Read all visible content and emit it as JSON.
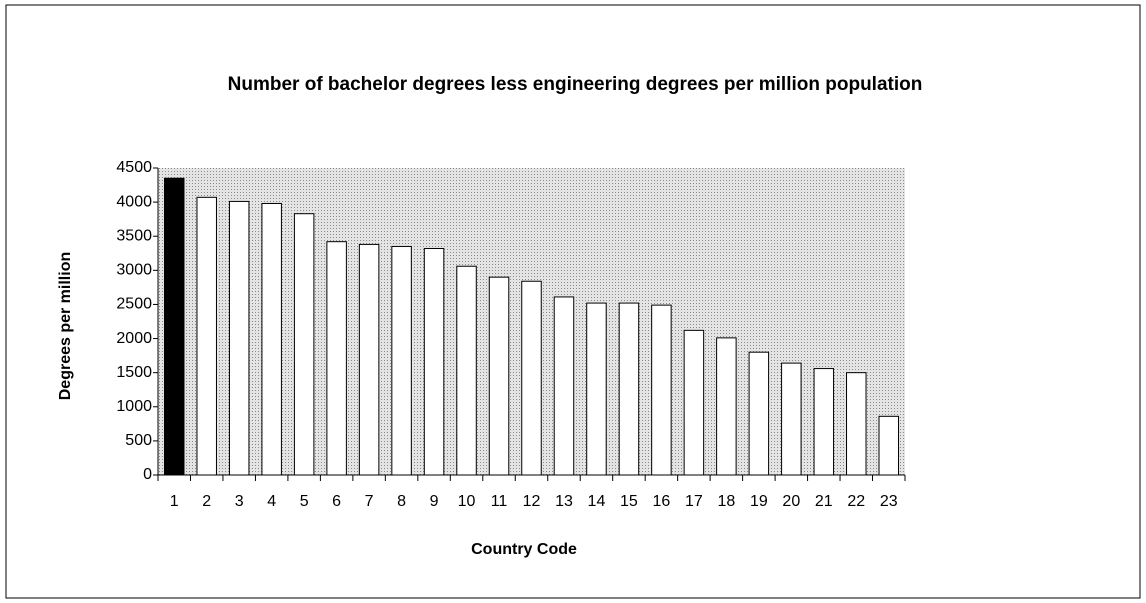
{
  "chart_data": {
    "type": "bar",
    "title": "Number of bachelor degrees less engineering degrees per million population",
    "x_label": "Country Code",
    "y_label": "Degrees per million",
    "categories": [
      "1",
      "2",
      "3",
      "4",
      "5",
      "6",
      "7",
      "8",
      "9",
      "10",
      "11",
      "12",
      "13",
      "14",
      "15",
      "16",
      "17",
      "18",
      "19",
      "20",
      "21",
      "22",
      "23"
    ],
    "values": [
      4350,
      4070,
      4010,
      3980,
      3830,
      3420,
      3380,
      3350,
      3320,
      3060,
      2900,
      2840,
      2610,
      2520,
      2520,
      2490,
      2120,
      2010,
      1800,
      1640,
      1560,
      1500,
      860
    ],
    "colors": [
      "#000000",
      "#ffffff",
      "#ffffff",
      "#ffffff",
      "#ffffff",
      "#ffffff",
      "#ffffff",
      "#ffffff",
      "#ffffff",
      "#ffffff",
      "#ffffff",
      "#ffffff",
      "#ffffff",
      "#ffffff",
      "#ffffff",
      "#ffffff",
      "#ffffff",
      "#ffffff",
      "#ffffff",
      "#ffffff",
      "#ffffff",
      "#ffffff",
      "#ffffff"
    ],
    "ylim": [
      0,
      4500
    ],
    "yticks": [
      0,
      500,
      1000,
      1500,
      2000,
      2500,
      3000,
      3500,
      4000,
      4500
    ],
    "grid": false
  }
}
